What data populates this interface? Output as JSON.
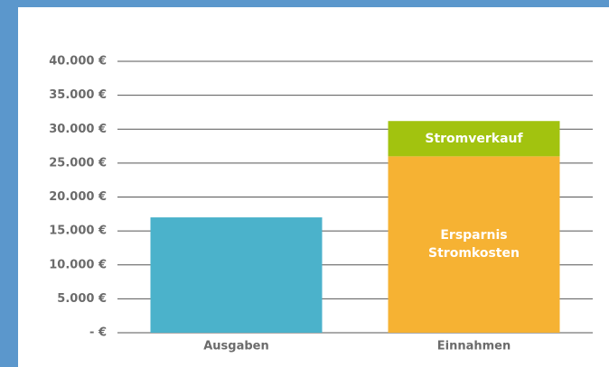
{
  "chart_data": {
    "type": "stacked_bar",
    "categories": [
      "Ausgaben",
      "Einnahmen"
    ],
    "series": [
      {
        "color": "#4bb2cb",
        "values": [
          17000,
          null
        ]
      },
      {
        "name": "Ersparnis Stromkosten",
        "color": "#f6b233",
        "values": [
          null,
          26000
        ]
      },
      {
        "name": "Stromverkauf",
        "color": "#a2c30f",
        "values": [
          null,
          5200
        ]
      }
    ],
    "ylim": [
      0,
      40000
    ],
    "yticks": [
      {
        "value": 0,
        "label": "- €"
      },
      {
        "value": 5000,
        "label": "5.000 €"
      },
      {
        "value": 10000,
        "label": "10.000 €"
      },
      {
        "value": 15000,
        "label": "15.000 €"
      },
      {
        "value": 20000,
        "label": "20.000 €"
      },
      {
        "value": 25000,
        "label": "25.000 €"
      },
      {
        "value": 30000,
        "label": "30.000 €"
      },
      {
        "value": 35000,
        "label": "35.000 €"
      },
      {
        "value": 40000,
        "label": "40.000 €"
      }
    ],
    "grid": true
  }
}
